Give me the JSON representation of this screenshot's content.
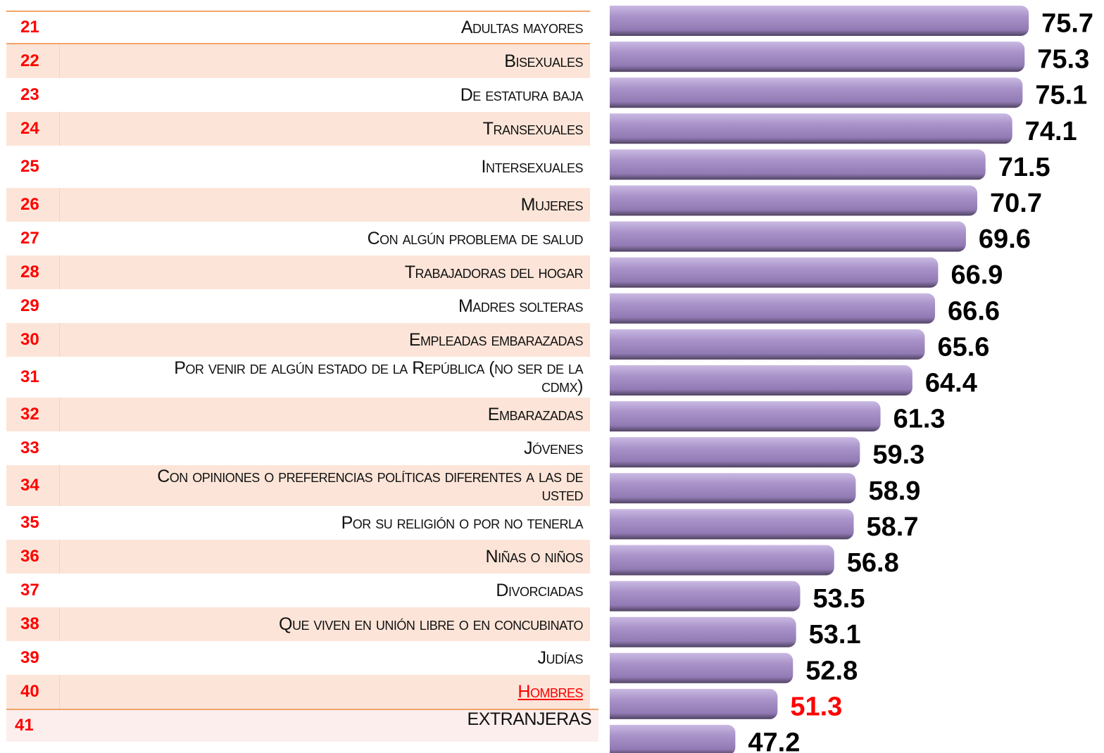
{
  "chart_data": {
    "type": "bar",
    "orientation": "horizontal",
    "ranks": [
      21,
      22,
      23,
      24,
      25,
      26,
      27,
      28,
      29,
      30,
      31,
      32,
      33,
      34,
      35,
      36,
      37,
      38,
      39,
      40,
      41
    ],
    "categories": [
      "Adultas mayores",
      "Bisexuales",
      "De estatura baja",
      "Transexuales",
      "Intersexuales",
      "Mujeres",
      "Con algún problema de salud",
      "Trabajadoras del hogar",
      "Madres solteras",
      "Empleadas embarazadas",
      "Por venir de algún estado de la República (no ser de la cdmx)",
      "Embarazadas",
      "Jóvenes",
      "Con opiniones o preferencias políticas diferentes a las de usted",
      "Por su religión o por no tenerla",
      "Niñas o niños",
      "Divorciadas",
      "Que viven en unión libre o en concubinato",
      "Judías",
      "Hombres",
      "EXTRANJERAS"
    ],
    "values": [
      75.7,
      75.3,
      75.1,
      74.1,
      71.5,
      70.7,
      69.6,
      66.9,
      66.6,
      65.6,
      64.4,
      61.3,
      59.3,
      58.9,
      58.7,
      56.8,
      53.5,
      53.1,
      52.8,
      51.3,
      47.2
    ],
    "color": "#a38dc3",
    "xlim": [
      35,
      80
    ],
    "highlight_index": 19,
    "highlight_color": "#ff0000",
    "rank_color": "#ff0000"
  }
}
